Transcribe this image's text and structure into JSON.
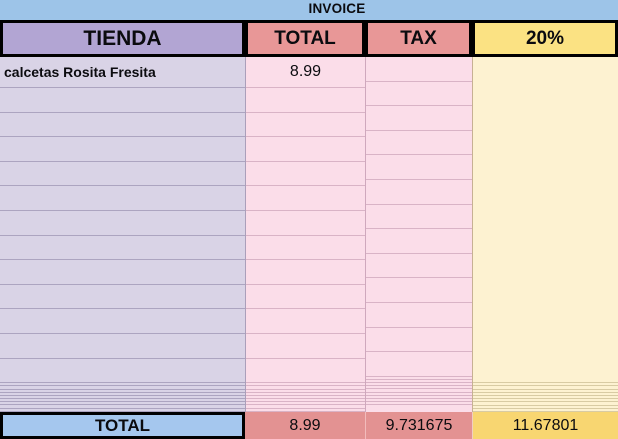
{
  "title": "INVOICE",
  "table": {
    "headers": [
      {
        "label": "TIENDA"
      },
      {
        "label": "TOTAL"
      },
      {
        "label": "TAX"
      },
      {
        "label": "20%"
      }
    ],
    "rows": [
      {
        "tienda": "calcetas Rosita Fresita",
        "total": "8.99",
        "tax": "",
        "pct": ""
      }
    ],
    "footer": {
      "label": "TOTAL",
      "total": "8.99",
      "tax": "9.731675",
      "pct": "11.67801"
    }
  },
  "colors": {
    "page_background": "#9dc4e8",
    "header_tienda": "#b2a5d3",
    "header_total_tax": "#e89797",
    "header_pct": "#fbe283",
    "body_tienda": "#d9d3e6",
    "body_total_tax": "#fbdde9",
    "body_pct": "#fdf2d1",
    "footer_label": "#a5c7ee",
    "footer_total_tax": "#e39292",
    "footer_pct": "#f8d671",
    "grid_border": "#000000"
  }
}
